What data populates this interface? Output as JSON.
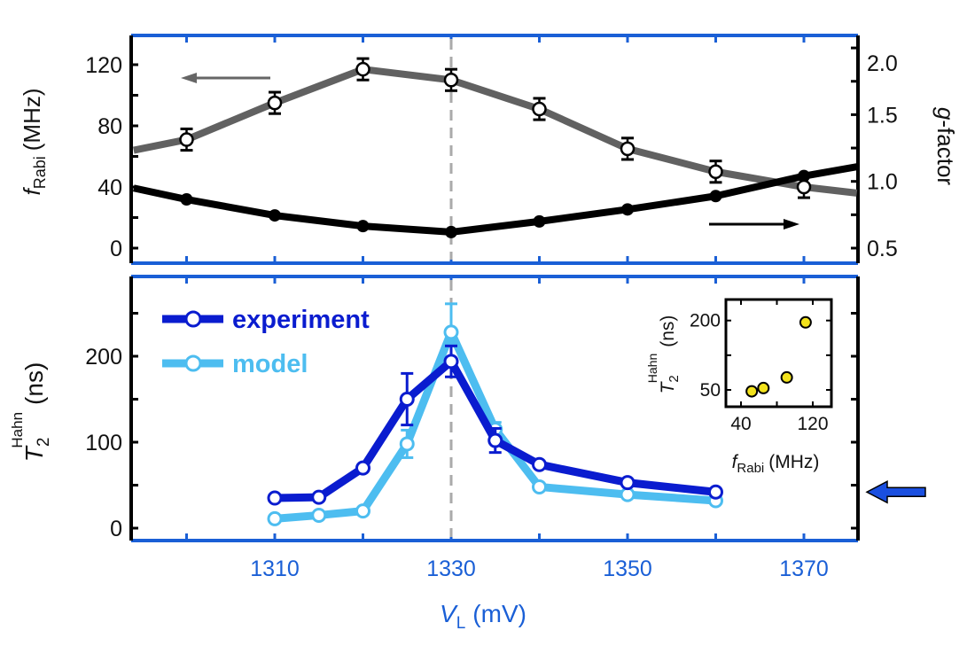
{
  "chart_data": [
    {
      "type": "line",
      "panel": "top",
      "xlabel": "V_L (mV)",
      "x_ticks": [
        "1310",
        "1330",
        "1350",
        "1370"
      ],
      "xlim": [
        1294,
        1376
      ],
      "ylabel_left": {
        "symbol": "f",
        "subscript": "Rabi",
        "unit": "(MHz)"
      },
      "ylabel_right": {
        "symbol": "g",
        "rest": "-factor"
      },
      "ylim_left": [
        -10,
        139
      ],
      "ylim_right": [
        0.4,
        2.1
      ],
      "left_ticks": [
        "0",
        "40",
        "80",
        "120"
      ],
      "right_ticks": [
        "0.5",
        "1.0",
        "1.5",
        "2.0"
      ],
      "series": [
        {
          "axis": "left",
          "color": "#616161",
          "marker": "open-circle",
          "x": [
            1300,
            1310,
            1320,
            1330,
            1340,
            1350,
            1360,
            1370
          ],
          "y": [
            71,
            95,
            117,
            110,
            91,
            65,
            50,
            40
          ],
          "yerr": [
            7,
            7,
            7,
            7,
            7,
            7,
            7,
            7
          ],
          "line_extends_to": {
            "start": [
              1294,
              64
            ],
            "end": [
              1376,
              36
            ]
          }
        },
        {
          "axis": "right",
          "color": "#000000",
          "marker": "filled-circle",
          "x": [
            1300,
            1310,
            1320,
            1330,
            1340,
            1350,
            1360,
            1370
          ],
          "y": [
            0.865,
            0.745,
            0.665,
            0.62,
            0.7,
            0.79,
            0.89,
            1.04
          ],
          "line_extends_to": {
            "start": [
              1294,
              0.95
            ],
            "end": [
              1376,
              1.11
            ]
          }
        }
      ],
      "vline_x": 1330
    },
    {
      "type": "line",
      "panel": "bottom",
      "xlabel": {
        "symbol": "V",
        "subscript": "L",
        "unit": "(mV)"
      },
      "xlim": [
        1294,
        1376
      ],
      "ylabel": {
        "symbol": "T",
        "subscript": "2",
        "superscript": "Hahn",
        "unit": "(ns)"
      },
      "ylim": [
        -14,
        293
      ],
      "y_ticks": [
        "0",
        "100",
        "200"
      ],
      "legend": "top-left",
      "series": [
        {
          "name": "experiment",
          "color": "#0a1ccf",
          "x": [
            1310,
            1315,
            1320,
            1325,
            1330,
            1335,
            1340,
            1350,
            1360
          ],
          "y": [
            35,
            36,
            70,
            150,
            194,
            102,
            74,
            53,
            42
          ],
          "yerr": [
            0,
            0,
            0,
            30,
            18,
            14,
            0,
            0,
            0
          ]
        },
        {
          "name": "model",
          "color": "#4dbdf0",
          "x": [
            1310,
            1315,
            1320,
            1325,
            1330,
            1335,
            1340,
            1350,
            1360
          ],
          "y": [
            11,
            15,
            20,
            98,
            228,
            115,
            48,
            39,
            32
          ],
          "yerr": [
            0,
            0,
            0,
            16,
            33,
            8,
            0,
            0,
            0
          ]
        }
      ],
      "vline_x": 1330,
      "marker_arrow_at_y": 42
    },
    {
      "type": "scatter",
      "panel": "inset",
      "xlabel": {
        "symbol": "f",
        "subscript": "Rabi",
        "unit": "(MHz)"
      },
      "ylabel": {
        "symbol": "T",
        "subscript": "2",
        "superscript": "Hahn",
        "unit": "(ns)"
      },
      "xlim": [
        23,
        141
      ],
      "ylim": [
        14,
        245
      ],
      "x_ticks": [
        "40",
        "120"
      ],
      "y_ticks": [
        "50",
        "200"
      ],
      "color": "#f2e21c",
      "x": [
        52,
        65,
        91,
        112
      ],
      "y": [
        47,
        54,
        77,
        196
      ]
    }
  ]
}
